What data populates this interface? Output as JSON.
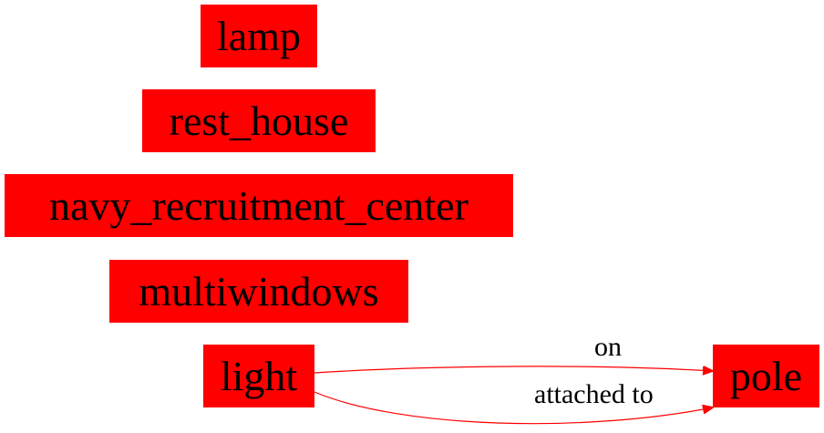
{
  "colors": {
    "node_fill": "#ff0000",
    "node_text": "#000000",
    "edge": "#ff0000",
    "background": "#ffffff"
  },
  "nodes": {
    "lamp": "lamp",
    "rest_house": "rest_house",
    "navy_recruitment_center": "navy_recruitment_center",
    "multiwindows": "multiwindows",
    "light": "light",
    "pole": "pole"
  },
  "edges": [
    {
      "from": "light",
      "to": "pole",
      "label": "on"
    },
    {
      "from": "light",
      "to": "pole",
      "label": "attached to"
    }
  ]
}
